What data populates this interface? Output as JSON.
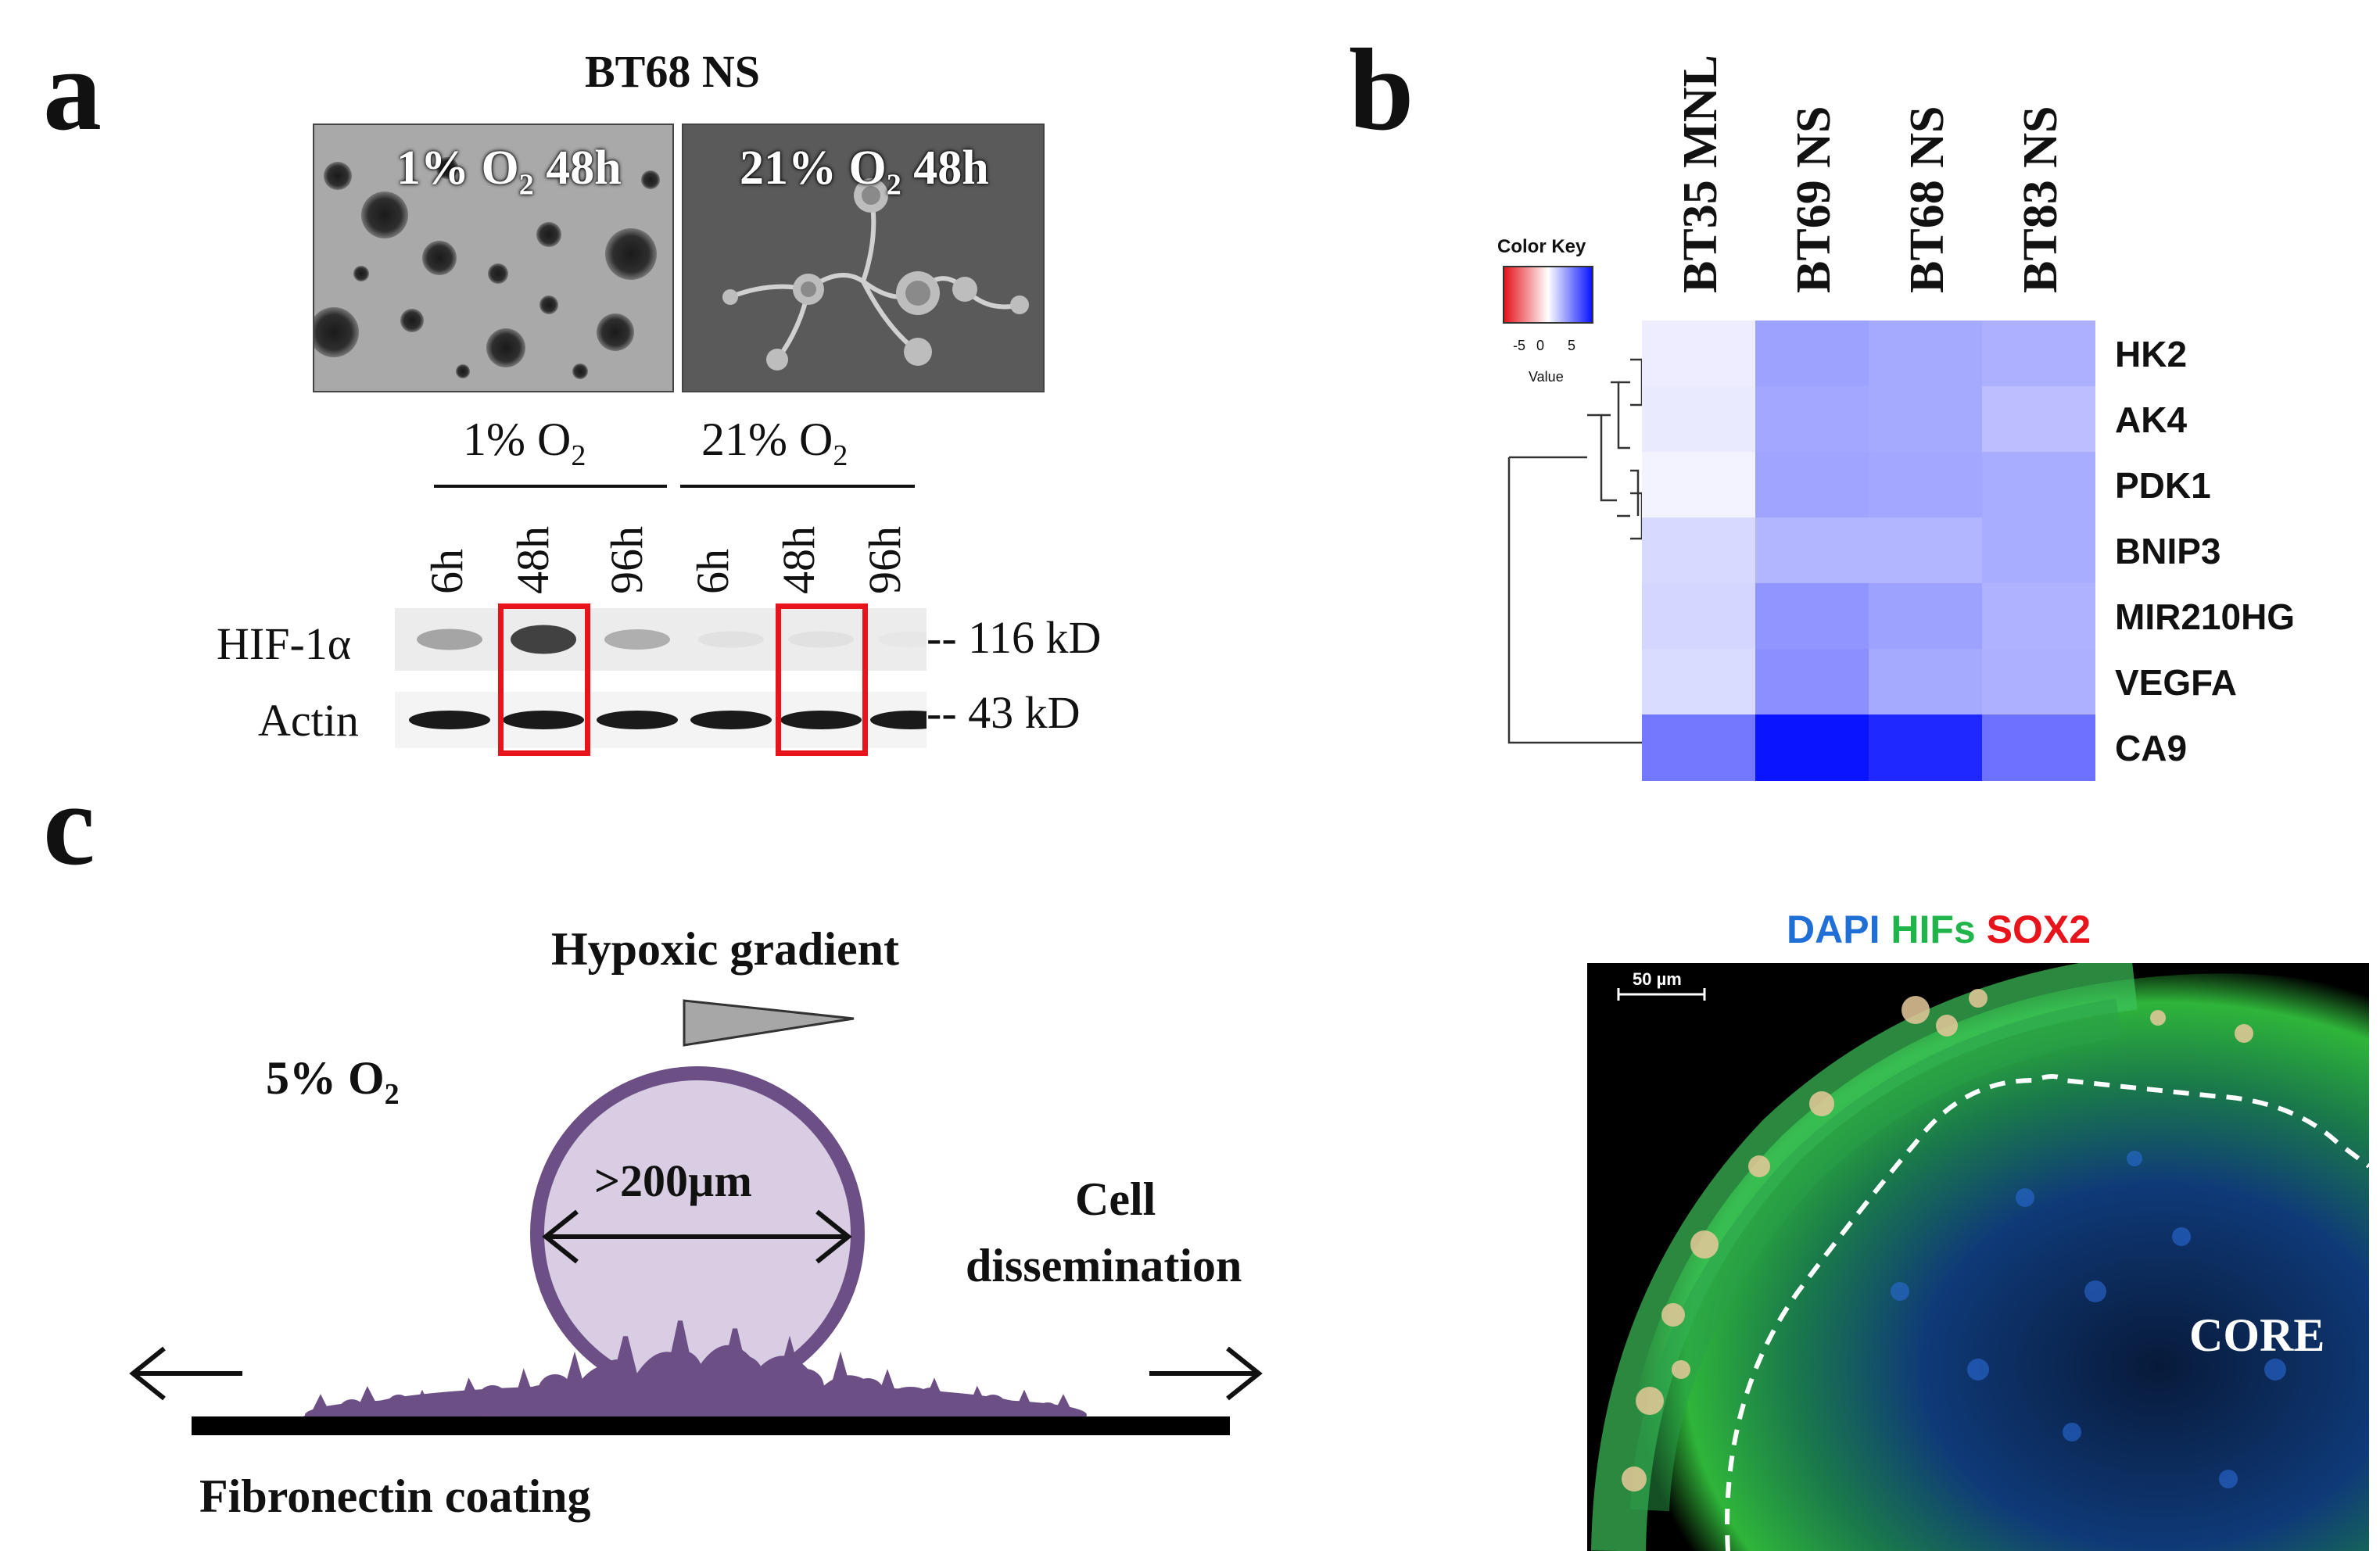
{
  "panel_a": {
    "letter": "a",
    "title": "BT68 NS",
    "micro_left": {
      "label_pre": "1% O",
      "label_sub": "2",
      "label_post": " 48h"
    },
    "micro_right": {
      "label_pre": "21% O",
      "label_sub": "2",
      "label_post": " 48h"
    },
    "group_left": {
      "pre": "1% O",
      "sub": "2"
    },
    "group_right": {
      "pre": "21% O",
      "sub": "2"
    },
    "lanes": [
      "6h",
      "48h",
      "96h",
      "6h",
      "48h",
      "96h"
    ],
    "row_hif": "HIF-1α",
    "row_actin": "Actin",
    "marker_hif": "-- 116 kD",
    "marker_actin": "-- 43 kD",
    "hif_intensity": [
      0.35,
      0.85,
      0.3,
      0.05,
      0.05,
      0.02
    ],
    "actin_intensity": [
      0.95,
      0.95,
      0.95,
      0.95,
      0.95,
      0.95
    ],
    "highlight_lanes": [
      1,
      4
    ],
    "highlight_color": "#e8141b"
  },
  "panel_b": {
    "letter": "b",
    "color_key_title": "Color Key",
    "color_key_ticks": [
      "-5",
      "0",
      "5"
    ],
    "color_key_xlabel": "Value",
    "columns": [
      "BT35 MNL",
      "BT69 NS",
      "BT68 NS",
      "BT83 NS"
    ],
    "rows": [
      "HK2",
      "AK4",
      "PDK1",
      "BNIP3",
      "MIR210HG",
      "VEGFA",
      "CA9"
    ],
    "values": [
      [
        0.6,
        3.2,
        2.9,
        2.7
      ],
      [
        0.7,
        3.0,
        2.9,
        2.2
      ],
      [
        0.4,
        3.1,
        3.0,
        2.8
      ],
      [
        1.3,
        2.5,
        2.5,
        2.8
      ],
      [
        1.4,
        3.6,
        3.2,
        2.6
      ],
      [
        1.2,
        3.8,
        2.9,
        2.7
      ],
      [
        4.6,
        8.0,
        7.3,
        4.8
      ]
    ],
    "low_color": "#e5141b",
    "mid_color": "#ffffff",
    "high_color": "#0a14ff"
  },
  "panel_c": {
    "letter": "c",
    "gradient_label": "Hypoxic gradient",
    "oxygen_pre": "5% O",
    "oxygen_sub": "2",
    "diameter_label": ">200µm",
    "dissemination_line1": "Cell",
    "dissemination_line2": "dissemination",
    "coating_label": "Fibronectin coating",
    "sphere_color": "#6c4f85",
    "sphere_fill": "#d8cde3",
    "stain_dapi": "DAPI",
    "stain_hifs": "HIFs",
    "stain_sox2": "SOX2",
    "dapi_color": "#1f6fd6",
    "hifs_color": "#1fb54a",
    "sox2_color": "#e8141b",
    "scale_bar": "50 µm",
    "core_label": "CORE"
  }
}
